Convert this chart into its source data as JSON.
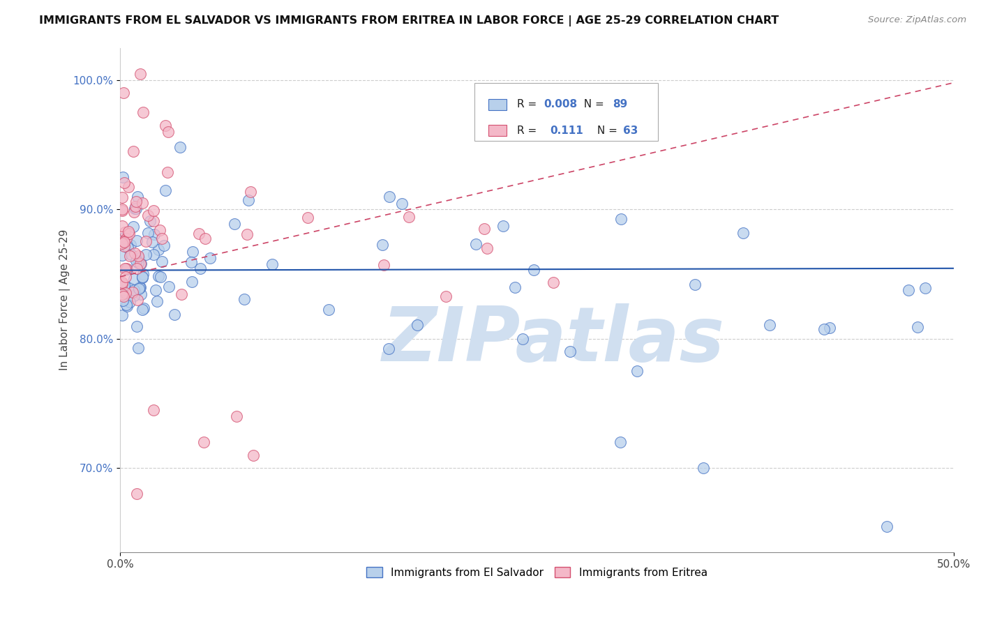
{
  "title": "IMMIGRANTS FROM EL SALVADOR VS IMMIGRANTS FROM ERITREA IN LABOR FORCE | AGE 25-29 CORRELATION CHART",
  "source": "Source: ZipAtlas.com",
  "ylabel": "In Labor Force | Age 25-29",
  "xlim": [
    0.0,
    0.5
  ],
  "ylim": [
    0.635,
    1.025
  ],
  "xtick_vals": [
    0.0,
    0.5
  ],
  "xtick_labels": [
    "0.0%",
    "50.0%"
  ],
  "ytick_vals": [
    0.7,
    0.8,
    0.9,
    1.0
  ],
  "ytick_labels": [
    "70.0%",
    "80.0%",
    "90.0%",
    "100.0%"
  ],
  "blue_fill": "#b8d0eb",
  "blue_edge": "#4472c4",
  "pink_fill": "#f4b8c8",
  "pink_edge": "#d45070",
  "blue_line_color": "#2255aa",
  "pink_line_color": "#cc4466",
  "watermark": "ZIPatlas",
  "watermark_color": "#d0dff0",
  "legend_r_blue": "0.008",
  "legend_n_blue": "89",
  "legend_r_pink": "0.111",
  "legend_n_pink": "63",
  "legend_label_blue": "Immigrants from El Salvador",
  "legend_label_pink": "Immigrants from Eritrea",
  "accent_color": "#4472c4"
}
